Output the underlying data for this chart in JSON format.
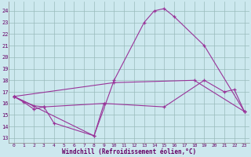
{
  "bg_color": "#cce8ee",
  "grid_color": "#99bbbb",
  "line_color": "#993399",
  "xlabel": "Windchill (Refroidissement éolien,°C)",
  "xlim": [
    -0.5,
    23.5
  ],
  "ylim": [
    12.6,
    24.8
  ],
  "xtick_pos": [
    0,
    1,
    2,
    3,
    4,
    5,
    6,
    7,
    8,
    9,
    10,
    11,
    12,
    13,
    14,
    15,
    16,
    17,
    18,
    19,
    20,
    21,
    22,
    23
  ],
  "xtick_labels": [
    "0",
    "1",
    "2",
    "3",
    "4",
    "5",
    "6",
    "7",
    "8",
    "9",
    "10",
    "11",
    "12",
    "13",
    "14",
    "15",
    "16",
    "17",
    "18",
    "19",
    "20",
    "21",
    "22",
    "23"
  ],
  "ytick_pos": [
    13,
    14,
    15,
    16,
    17,
    18,
    19,
    20,
    21,
    22,
    23,
    24
  ],
  "ytick_labels": [
    "13",
    "14",
    "15",
    "16",
    "17",
    "18",
    "19",
    "20",
    "21",
    "22",
    "23",
    "24"
  ],
  "series": [
    {
      "x": [
        0,
        1,
        2,
        3,
        4,
        8,
        9
      ],
      "y": [
        16.6,
        16.1,
        15.5,
        15.7,
        14.3,
        13.2,
        16.0
      ]
    },
    {
      "x": [
        0,
        8,
        10,
        13,
        14,
        15,
        16,
        19,
        23
      ],
      "y": [
        16.6,
        13.2,
        18.0,
        23.0,
        24.0,
        24.2,
        23.5,
        21.0,
        15.3
      ]
    },
    {
      "x": [
        0,
        10,
        18,
        23
      ],
      "y": [
        16.6,
        17.8,
        18.0,
        15.3
      ]
    },
    {
      "x": [
        0,
        2,
        3,
        9,
        15,
        19,
        21,
        22,
        23
      ],
      "y": [
        16.6,
        15.8,
        15.7,
        16.0,
        15.7,
        18.0,
        17.0,
        17.2,
        15.3
      ]
    }
  ]
}
